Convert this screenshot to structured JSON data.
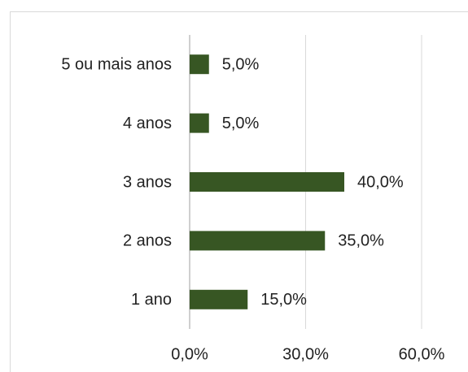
{
  "chart_data": {
    "type": "bar",
    "orientation": "horizontal",
    "categories": [
      "5 ou mais anos",
      "4 anos",
      "3 anos",
      "2 anos",
      "1 ano"
    ],
    "values": [
      5,
      5,
      40,
      35,
      15
    ],
    "value_labels": [
      "5,0%",
      "5,0%",
      "40,0%",
      "35,0%",
      "15,0%"
    ],
    "color": "#375623",
    "xlim": [
      0,
      60
    ],
    "xticks": [
      {
        "value": 0,
        "label": "0,0%"
      },
      {
        "value": 30,
        "label": "30,0%"
      },
      {
        "value": 60,
        "label": "60,0%"
      }
    ],
    "grid": true
  }
}
